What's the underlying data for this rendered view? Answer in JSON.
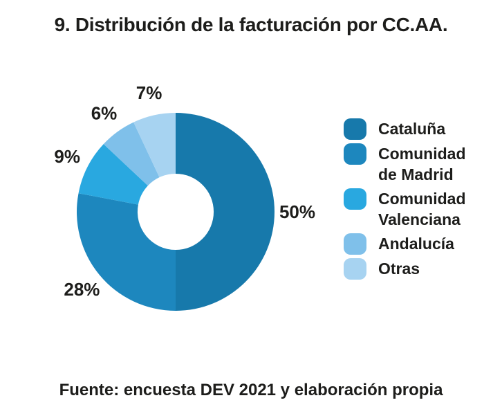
{
  "title": "9. Distribución de la facturación por CC.AA.",
  "source": "Fuente: encuesta DEV 2021 y elaboración propia",
  "chart_data": {
    "type": "pie",
    "subtype": "donut",
    "title": "9. Distribución de la facturación por CC.AA.",
    "categories": [
      "Cataluña",
      "Comunidad de Madrid",
      "Comunidad Valenciana",
      "Andalucía",
      "Otras"
    ],
    "values": [
      50,
      28,
      9,
      6,
      7
    ],
    "unit": "%",
    "slice_labels": [
      "50%",
      "28%",
      "9%",
      "6%",
      "7%"
    ],
    "colors": [
      "#1779AB",
      "#1D87BE",
      "#29A8E0",
      "#7FC0EA",
      "#A7D3F1"
    ],
    "start_angle_deg": 0,
    "direction": "clockwise",
    "inner_radius_ratio": 0.385,
    "legend_position": "right",
    "label_color": "#1d1d1b",
    "source": "Fuente: encuesta DEV 2021 y elaboración propia"
  }
}
